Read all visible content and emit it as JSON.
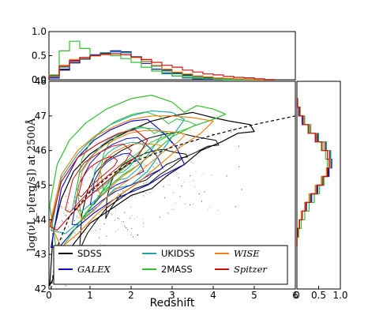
{
  "chart_data": [
    {
      "panel": "main",
      "type": "scatter",
      "xlabel": "Redshift",
      "ylabel": "log(νL_ν[erg/s]) at 2500Å",
      "xlim": [
        0,
        6
      ],
      "ylim": [
        42,
        48
      ],
      "x_ticks": [
        "0",
        "1",
        "2",
        "3",
        "4",
        "5",
        "6"
      ],
      "y_ticks": [
        "42",
        "43",
        "44",
        "45",
        "46",
        "47",
        "48"
      ],
      "legend_placement": "lower-left",
      "legend": [
        {
          "name": "SDSS",
          "color": "#000000",
          "italic": false
        },
        {
          "name": "UKIDSS",
          "color": "#20a8a8",
          "italic": false
        },
        {
          "name": "WISE",
          "color": "#f08010",
          "italic": true
        },
        {
          "name": "GALEX",
          "color": "#1010c0",
          "italic": true
        },
        {
          "name": "2MASS",
          "color": "#30c030",
          "italic": false
        },
        {
          "name": "Spitzer",
          "color": "#d01010",
          "italic": true
        }
      ],
      "series": [
        {
          "key": "SDSS",
          "color": "#000000",
          "outer_contour": [
            [
              0.02,
              42.1
            ],
            [
              0.1,
              43.6
            ],
            [
              0.3,
              44.6
            ],
            [
              0.6,
              45.4
            ],
            [
              1.0,
              45.9
            ],
            [
              1.5,
              46.3
            ],
            [
              2.0,
              46.6
            ],
            [
              2.5,
              46.85
            ],
            [
              3.0,
              47.0
            ],
            [
              3.5,
              47.1
            ],
            [
              4.0,
              46.95
            ],
            [
              4.4,
              46.85
            ],
            [
              4.9,
              46.75
            ],
            [
              5.0,
              46.55
            ],
            [
              4.6,
              46.5
            ],
            [
              4.2,
              46.25
            ],
            [
              3.7,
              46.0
            ],
            [
              3.3,
              45.6
            ],
            [
              2.9,
              45.3
            ],
            [
              2.5,
              44.9
            ],
            [
              2.0,
              44.7
            ],
            [
              1.5,
              44.3
            ],
            [
              1.0,
              43.9
            ],
            [
              0.6,
              43.3
            ],
            [
              0.3,
              42.8
            ],
            [
              0.1,
              42.3
            ]
          ]
        },
        {
          "key": "UKIDSS",
          "color": "#20a8a8",
          "outer_contour": [
            [
              0.05,
              43.7
            ],
            [
              0.3,
              45.2
            ],
            [
              0.7,
              45.9
            ],
            [
              1.1,
              46.4
            ],
            [
              1.5,
              46.75
            ],
            [
              2.0,
              47.0
            ],
            [
              2.5,
              47.15
            ],
            [
              3.0,
              47.1
            ],
            [
              3.3,
              46.9
            ],
            [
              3.0,
              46.4
            ],
            [
              2.7,
              45.9
            ],
            [
              2.4,
              45.4
            ],
            [
              2.0,
              45.0
            ],
            [
              1.6,
              44.9
            ],
            [
              1.2,
              44.4
            ],
            [
              0.8,
              44.0
            ],
            [
              0.4,
              43.6
            ]
          ]
        },
        {
          "key": "GALEX",
          "color": "#1010c0",
          "outer_contour": [
            [
              0.05,
              43.2
            ],
            [
              0.3,
              44.9
            ],
            [
              0.7,
              45.8
            ],
            [
              1.1,
              46.3
            ],
            [
              1.5,
              46.6
            ],
            [
              2.0,
              46.85
            ],
            [
              2.4,
              46.9
            ],
            [
              2.8,
              46.5
            ],
            [
              3.1,
              46.1
            ],
            [
              3.3,
              45.6
            ],
            [
              2.8,
              45.3
            ],
            [
              2.4,
              45.0
            ],
            [
              2.0,
              44.8
            ],
            [
              1.6,
              44.6
            ],
            [
              1.1,
              44.2
            ],
            [
              0.6,
              43.7
            ],
            [
              0.25,
              43.2
            ]
          ]
        },
        {
          "key": "2MASS",
          "color": "#30c030",
          "outer_contour": [
            [
              0.02,
              44.4
            ],
            [
              0.2,
              45.6
            ],
            [
              0.5,
              46.3
            ],
            [
              0.9,
              46.8
            ],
            [
              1.4,
              47.2
            ],
            [
              2.0,
              47.5
            ],
            [
              2.5,
              47.6
            ],
            [
              3.0,
              47.4
            ],
            [
              3.3,
              47.1
            ],
            [
              3.6,
              47.3
            ],
            [
              4.0,
              47.2
            ],
            [
              4.3,
              47.05
            ],
            [
              4.0,
              46.9
            ],
            [
              3.5,
              46.7
            ],
            [
              3.0,
              46.4
            ],
            [
              2.6,
              46.0
            ],
            [
              2.2,
              45.6
            ],
            [
              1.8,
              45.3
            ],
            [
              1.3,
              44.8
            ],
            [
              0.9,
              44.2
            ],
            [
              0.5,
              43.5
            ],
            [
              0.2,
              43.0
            ]
          ]
        },
        {
          "key": "WISE",
          "color": "#f08010",
          "outer_contour": [
            [
              0.03,
              43.9
            ],
            [
              0.3,
              45.3
            ],
            [
              0.7,
              46.0
            ],
            [
              1.1,
              46.4
            ],
            [
              1.6,
              46.7
            ],
            [
              2.0,
              46.9
            ],
            [
              2.5,
              47.0
            ],
            [
              3.0,
              47.0
            ],
            [
              3.5,
              46.95
            ],
            [
              4.0,
              46.85
            ],
            [
              3.7,
              46.5
            ],
            [
              3.2,
              46.1
            ],
            [
              2.7,
              45.6
            ],
            [
              2.2,
              45.1
            ],
            [
              1.7,
              44.7
            ],
            [
              1.2,
              44.2
            ],
            [
              0.7,
              43.6
            ],
            [
              0.3,
              43.2
            ]
          ]
        },
        {
          "key": "Spitzer",
          "color": "#d01010",
          "outer_contour": [
            [
              0.03,
              43.8
            ],
            [
              0.3,
              45.1
            ],
            [
              0.7,
              45.8
            ],
            [
              1.2,
              46.2
            ],
            [
              1.7,
              46.5
            ],
            [
              2.1,
              46.6
            ],
            [
              2.4,
              46.3
            ],
            [
              2.2,
              45.9
            ],
            [
              1.8,
              45.5
            ],
            [
              1.3,
              45.0
            ],
            [
              0.9,
              44.6
            ],
            [
              0.5,
              44.1
            ],
            [
              0.2,
              43.7
            ]
          ]
        }
      ],
      "dashed_curve": [
        [
          0.05,
          42.0
        ],
        [
          0.2,
          43.2
        ],
        [
          0.5,
          44.1
        ],
        [
          1.0,
          44.8
        ],
        [
          1.5,
          45.3
        ],
        [
          2.0,
          45.65
        ],
        [
          3.0,
          46.1
        ],
        [
          4.0,
          46.45
        ],
        [
          5.0,
          46.75
        ],
        [
          6.0,
          47.0
        ]
      ]
    },
    {
      "panel": "top-histogram",
      "type": "line",
      "xlabel": "",
      "ylabel": "",
      "xlim": [
        0,
        6
      ],
      "ylim": [
        0,
        1.0
      ],
      "y_ticks": [
        "0.0",
        "0.5",
        "1.0"
      ],
      "x": [
        0.0,
        0.25,
        0.5,
        0.75,
        1.0,
        1.25,
        1.5,
        1.75,
        2.0,
        2.25,
        2.5,
        2.75,
        3.0,
        3.25,
        3.5,
        3.75,
        4.0,
        4.25,
        4.5,
        4.75,
        5.0,
        5.25
      ],
      "series": [
        {
          "key": "SDSS",
          "color": "#000000",
          "values": [
            0.04,
            0.2,
            0.35,
            0.43,
            0.5,
            0.55,
            0.58,
            0.56,
            0.48,
            0.38,
            0.28,
            0.2,
            0.14,
            0.1,
            0.07,
            0.05,
            0.03,
            0.02,
            0.015,
            0.01,
            0.0,
            0.0
          ]
        },
        {
          "key": "GALEX",
          "color": "#1010c0",
          "values": [
            0.04,
            0.22,
            0.38,
            0.46,
            0.52,
            0.56,
            0.6,
            0.58,
            0.46,
            0.34,
            0.22,
            0.14,
            0.08,
            0.04,
            0.02,
            0.01,
            0.0,
            0.0,
            0.0,
            0.0,
            0.0,
            0.0
          ]
        },
        {
          "key": "UKIDSS",
          "color": "#20a8a8",
          "values": [
            0.06,
            0.26,
            0.4,
            0.46,
            0.5,
            0.56,
            0.58,
            0.56,
            0.48,
            0.38,
            0.28,
            0.18,
            0.12,
            0.08,
            0.05,
            0.03,
            0.02,
            0.01,
            0.0,
            0.0,
            0.0,
            0.0
          ]
        },
        {
          "key": "2MASS",
          "color": "#30c030",
          "values": [
            0.1,
            0.6,
            0.8,
            0.65,
            0.5,
            0.52,
            0.5,
            0.44,
            0.36,
            0.26,
            0.18,
            0.12,
            0.08,
            0.05,
            0.03,
            0.02,
            0.01,
            0.0,
            0.0,
            0.0,
            0.0,
            0.0
          ]
        },
        {
          "key": "WISE",
          "color": "#f08010",
          "values": [
            0.08,
            0.3,
            0.42,
            0.46,
            0.5,
            0.52,
            0.54,
            0.52,
            0.46,
            0.38,
            0.3,
            0.22,
            0.16,
            0.12,
            0.08,
            0.06,
            0.04,
            0.03,
            0.02,
            0.01,
            0.0,
            0.0
          ]
        },
        {
          "key": "Spitzer",
          "color": "#d01010",
          "values": [
            0.08,
            0.28,
            0.4,
            0.46,
            0.5,
            0.53,
            0.54,
            0.52,
            0.47,
            0.42,
            0.36,
            0.3,
            0.26,
            0.2,
            0.16,
            0.12,
            0.1,
            0.07,
            0.05,
            0.04,
            0.02,
            0.0
          ]
        }
      ]
    },
    {
      "panel": "right-histogram",
      "type": "line",
      "xlabel": "",
      "ylabel": "",
      "xlim": [
        0,
        1.0
      ],
      "ylim": [
        42,
        48
      ],
      "x_ticks": [
        "0",
        "0.5",
        "1.0"
      ],
      "y": [
        43.25,
        43.5,
        43.75,
        44.0,
        44.25,
        44.5,
        44.75,
        45.0,
        45.25,
        45.5,
        45.75,
        46.0,
        46.25,
        46.5,
        46.75,
        47.0,
        47.25
      ],
      "series": [
        {
          "key": "SDSS",
          "color": "#000000",
          "values": [
            0.0,
            0.02,
            0.06,
            0.12,
            0.2,
            0.32,
            0.46,
            0.6,
            0.72,
            0.8,
            0.78,
            0.66,
            0.48,
            0.3,
            0.16,
            0.06,
            0.01
          ]
        },
        {
          "key": "GALEX",
          "color": "#1010c0",
          "values": [
            0.0,
            0.02,
            0.06,
            0.12,
            0.22,
            0.34,
            0.48,
            0.62,
            0.74,
            0.8,
            0.76,
            0.62,
            0.44,
            0.26,
            0.12,
            0.04,
            0.0
          ]
        },
        {
          "key": "UKIDSS",
          "color": "#20a8a8",
          "values": [
            0.0,
            0.02,
            0.05,
            0.1,
            0.18,
            0.3,
            0.44,
            0.58,
            0.7,
            0.78,
            0.78,
            0.68,
            0.5,
            0.32,
            0.18,
            0.08,
            0.02
          ]
        },
        {
          "key": "2MASS",
          "color": "#30c030",
          "values": [
            0.0,
            0.04,
            0.1,
            0.18,
            0.28,
            0.4,
            0.52,
            0.62,
            0.68,
            0.7,
            0.66,
            0.56,
            0.42,
            0.28,
            0.16,
            0.08,
            0.02
          ]
        },
        {
          "key": "WISE",
          "color": "#f08010",
          "values": [
            0.0,
            0.02,
            0.05,
            0.1,
            0.18,
            0.28,
            0.42,
            0.56,
            0.68,
            0.76,
            0.74,
            0.62,
            0.46,
            0.3,
            0.16,
            0.07,
            0.02
          ]
        },
        {
          "key": "Spitzer",
          "color": "#d01010",
          "values": [
            0.0,
            0.02,
            0.06,
            0.12,
            0.2,
            0.32,
            0.46,
            0.6,
            0.7,
            0.74,
            0.7,
            0.58,
            0.42,
            0.26,
            0.14,
            0.06,
            0.01
          ]
        }
      ]
    }
  ]
}
